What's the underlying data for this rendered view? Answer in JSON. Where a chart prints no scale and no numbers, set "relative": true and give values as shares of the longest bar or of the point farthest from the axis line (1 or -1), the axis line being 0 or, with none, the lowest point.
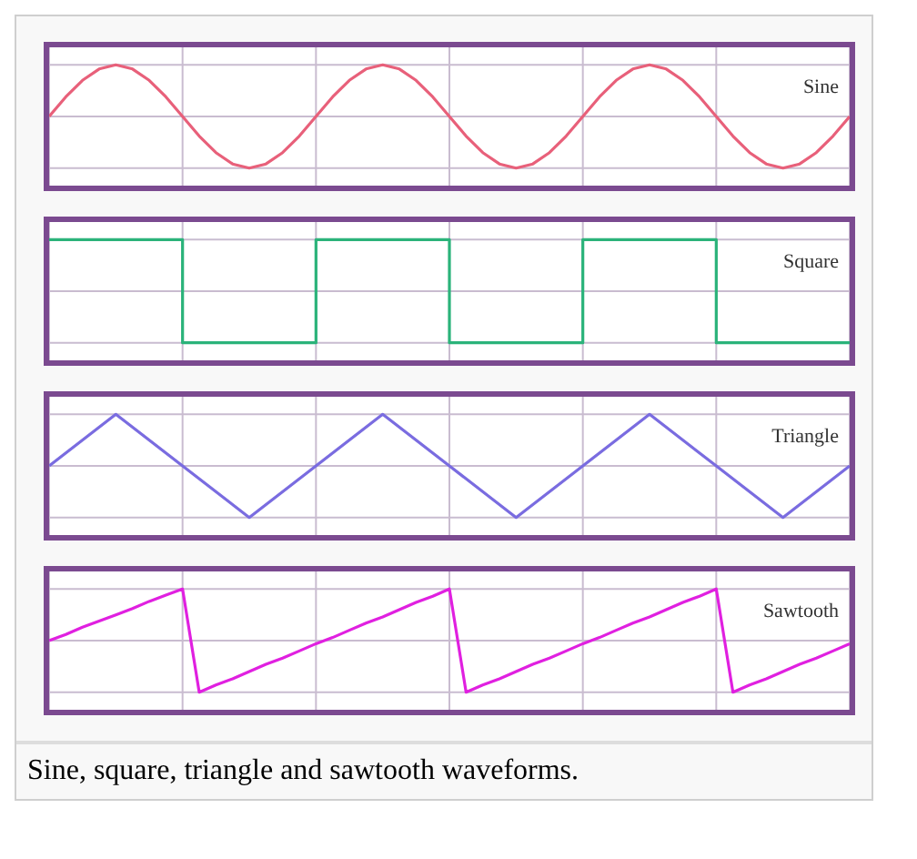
{
  "chart_data": [
    {
      "type": "line",
      "relative": true,
      "grid": true,
      "categories": [
        null,
        null,
        null,
        null,
        null,
        null,
        null,
        null,
        null,
        null,
        null,
        null,
        null,
        null,
        null,
        null,
        null,
        null,
        null,
        null,
        null,
        null,
        null,
        null,
        null,
        null,
        null,
        null,
        null,
        null,
        null,
        null,
        null,
        null,
        null,
        null,
        null,
        null,
        null,
        null,
        null,
        null,
        null,
        null,
        null,
        null,
        null,
        null,
        null
      ],
      "series": [
        {
          "name": "Sine",
          "color": "#e8607a",
          "values": [
            0.5,
            0.69,
            0.85,
            0.96,
            1,
            0.96,
            0.85,
            0.69,
            0.5,
            0.31,
            0.15,
            0.04,
            0,
            0.04,
            0.15,
            0.31,
            0.5,
            0.69,
            0.85,
            0.96,
            1,
            0.96,
            0.85,
            0.69,
            0.5,
            0.31,
            0.15,
            0.04,
            0,
            0.04,
            0.15,
            0.31,
            0.5,
            0.69,
            0.85,
            0.96,
            1,
            0.96,
            0.85,
            0.69,
            0.5,
            0.31,
            0.15,
            0.04,
            0,
            0.04,
            0.15,
            0.31,
            0.5
          ]
        }
      ]
    },
    {
      "type": "step",
      "relative": true,
      "grid": true,
      "categories": [
        null,
        null,
        null,
        null,
        null,
        null,
        null,
        null,
        null,
        null,
        null,
        null,
        null,
        null,
        null,
        null,
        null,
        null,
        null,
        null,
        null,
        null,
        null,
        null,
        null,
        null,
        null,
        null,
        null,
        null,
        null,
        null,
        null,
        null,
        null,
        null,
        null,
        null,
        null,
        null,
        null,
        null,
        null,
        null,
        null,
        null,
        null,
        null,
        null
      ],
      "series": [
        {
          "name": "Square",
          "color": "#2bb37a",
          "values": [
            1,
            1,
            1,
            1,
            1,
            1,
            1,
            1,
            0,
            0,
            0,
            0,
            0,
            0,
            0,
            0,
            1,
            1,
            1,
            1,
            1,
            1,
            1,
            1,
            0,
            0,
            0,
            0,
            0,
            0,
            0,
            0,
            1,
            1,
            1,
            1,
            1,
            1,
            1,
            1,
            0,
            0,
            0,
            0,
            0,
            0,
            0,
            0,
            0
          ]
        }
      ]
    },
    {
      "type": "line",
      "relative": true,
      "grid": true,
      "categories": [
        null,
        null,
        null,
        null,
        null,
        null,
        null,
        null,
        null,
        null,
        null,
        null,
        null
      ],
      "series": [
        {
          "name": "Triangle",
          "color": "#7a6ce0",
          "values": [
            0.5,
            1,
            0.5,
            0,
            0.5,
            1,
            0.5,
            0,
            0.5,
            1,
            0.5,
            0,
            0.5
          ]
        }
      ]
    },
    {
      "type": "line",
      "relative": true,
      "grid": true,
      "categories": [
        null,
        null,
        null,
        null,
        null,
        null,
        null,
        null,
        null,
        null,
        null,
        null,
        null,
        null,
        null,
        null,
        null,
        null,
        null,
        null,
        null,
        null,
        null,
        null,
        null,
        null,
        null,
        null,
        null,
        null,
        null,
        null,
        null,
        null,
        null,
        null,
        null,
        null,
        null,
        null,
        null,
        null,
        null,
        null,
        null,
        null,
        null,
        null,
        null
      ],
      "series": [
        {
          "name": "Sawtooth",
          "color": "#e020e0",
          "values": [
            0.5,
            0.56,
            0.63,
            0.69,
            0.75,
            0.81,
            0.88,
            0.94,
            1,
            0,
            0.07,
            0.13,
            0.2,
            0.27,
            0.33,
            0.4,
            0.47,
            0.53,
            0.6,
            0.67,
            0.73,
            0.8,
            0.87,
            0.93,
            1,
            0,
            0.07,
            0.13,
            0.2,
            0.27,
            0.33,
            0.4,
            0.47,
            0.53,
            0.6,
            0.67,
            0.73,
            0.8,
            0.87,
            0.93,
            1,
            0,
            0.07,
            0.13,
            0.2,
            0.27,
            0.33,
            0.4,
            0.47
          ]
        }
      ],
      "annotations": [
        "Sine, square, triangle and sawtooth waveforms."
      ]
    }
  ]
}
